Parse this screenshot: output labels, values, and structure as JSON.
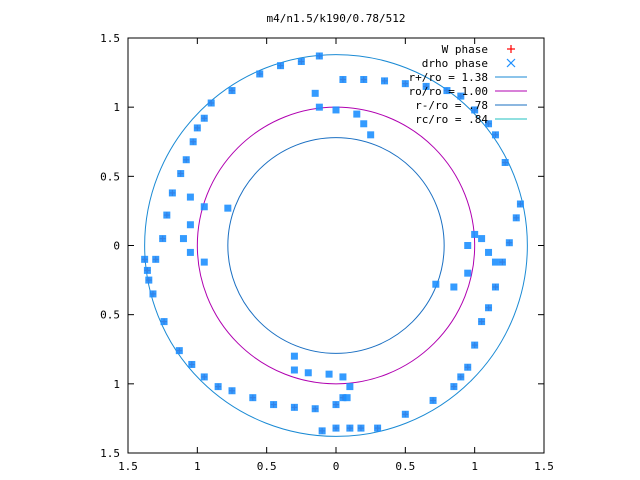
{
  "chart_data": {
    "type": "scatter",
    "title": "m4/n1.5/k190/0.78/512",
    "xlabel": "",
    "ylabel": "",
    "xlim": [
      -1.5,
      1.5
    ],
    "ylim": [
      -1.5,
      1.5
    ],
    "x_ticks": [
      -1.5,
      -1,
      -0.5,
      0,
      0.5,
      1,
      1.5
    ],
    "y_ticks": [
      -1.5,
      -1,
      -0.5,
      0,
      0.5,
      1,
      1.5
    ],
    "x_tick_labels": [
      "1.5",
      "1",
      "0.5",
      "0",
      "0.5",
      "1",
      "1.5"
    ],
    "y_tick_labels": [
      "1.5",
      "1",
      "0.5",
      "0",
      "0.5",
      "1",
      "1.5"
    ],
    "grid": false,
    "legend_position": "top-right",
    "legend_alignment": "right-aligned text",
    "series": [
      {
        "name": "W phase",
        "marker": "plus",
        "color": "#ff0000",
        "points": [
          [
            -0.12,
            1.37
          ],
          [
            -0.25,
            1.33
          ],
          [
            -0.4,
            1.3
          ],
          [
            -0.55,
            1.24
          ],
          [
            -0.75,
            1.12
          ],
          [
            -0.9,
            1.03
          ],
          [
            -0.95,
            0.92
          ],
          [
            -1.0,
            0.85
          ],
          [
            -1.03,
            0.75
          ],
          [
            -1.08,
            0.62
          ],
          [
            -1.12,
            0.52
          ],
          [
            -1.18,
            0.38
          ],
          [
            -1.22,
            0.22
          ],
          [
            -1.25,
            0.05
          ],
          [
            -1.3,
            -0.1
          ],
          [
            -1.38,
            -0.1
          ],
          [
            -1.36,
            -0.18
          ],
          [
            -1.35,
            -0.25
          ],
          [
            -1.32,
            -0.35
          ],
          [
            -1.24,
            -0.55
          ],
          [
            -1.13,
            -0.76
          ],
          [
            -1.04,
            -0.86
          ],
          [
            -0.95,
            -0.95
          ],
          [
            -0.85,
            -1.02
          ],
          [
            -0.75,
            -1.05
          ],
          [
            -0.6,
            -1.1
          ],
          [
            -0.45,
            -1.15
          ],
          [
            -0.3,
            -1.17
          ],
          [
            -0.15,
            -1.18
          ],
          [
            0.0,
            -1.15
          ],
          [
            0.05,
            -1.1
          ],
          [
            -0.1,
            -1.34
          ],
          [
            0.0,
            -1.32
          ],
          [
            0.1,
            -1.32
          ],
          [
            0.18,
            -1.32
          ],
          [
            0.3,
            -1.32
          ],
          [
            0.5,
            -1.22
          ],
          [
            0.7,
            -1.12
          ],
          [
            0.85,
            -1.02
          ],
          [
            0.9,
            -0.95
          ],
          [
            0.95,
            -0.88
          ],
          [
            1.0,
            -0.72
          ],
          [
            1.05,
            -0.55
          ],
          [
            1.1,
            -0.45
          ],
          [
            1.15,
            -0.3
          ],
          [
            1.2,
            -0.12
          ],
          [
            1.25,
            0.02
          ],
          [
            1.3,
            0.2
          ],
          [
            1.33,
            0.3
          ],
          [
            1.22,
            0.6
          ],
          [
            1.15,
            0.8
          ],
          [
            1.1,
            0.88
          ],
          [
            1.0,
            0.98
          ],
          [
            0.9,
            1.08
          ],
          [
            0.8,
            1.12
          ],
          [
            0.65,
            1.15
          ],
          [
            0.5,
            1.17
          ],
          [
            0.35,
            1.19
          ],
          [
            0.2,
            1.2
          ],
          [
            0.05,
            1.2
          ]
        ]
      },
      {
        "name": "drho phase",
        "marker": "cross",
        "color": "#1e90ff",
        "points": [
          [
            -0.12,
            1.37
          ],
          [
            -0.25,
            1.33
          ],
          [
            -0.4,
            1.3
          ],
          [
            -0.55,
            1.24
          ],
          [
            -0.75,
            1.12
          ],
          [
            -0.9,
            1.03
          ],
          [
            -0.95,
            0.92
          ],
          [
            -1.0,
            0.85
          ],
          [
            -1.03,
            0.75
          ],
          [
            -1.08,
            0.62
          ],
          [
            -1.12,
            0.52
          ],
          [
            -1.18,
            0.38
          ],
          [
            -1.22,
            0.22
          ],
          [
            -1.25,
            0.05
          ],
          [
            -1.3,
            -0.1
          ],
          [
            -1.38,
            -0.1
          ],
          [
            -1.36,
            -0.18
          ],
          [
            -1.35,
            -0.25
          ],
          [
            -1.32,
            -0.35
          ],
          [
            -1.24,
            -0.55
          ],
          [
            -1.13,
            -0.76
          ],
          [
            -1.04,
            -0.86
          ],
          [
            -0.95,
            -0.95
          ],
          [
            -0.85,
            -1.02
          ],
          [
            -0.75,
            -1.05
          ],
          [
            -0.6,
            -1.1
          ],
          [
            -0.45,
            -1.15
          ],
          [
            -0.3,
            -1.17
          ],
          [
            -0.15,
            -1.18
          ],
          [
            0.0,
            -1.15
          ],
          [
            0.05,
            -1.1
          ],
          [
            -0.1,
            -1.34
          ],
          [
            0.0,
            -1.32
          ],
          [
            0.1,
            -1.32
          ],
          [
            0.18,
            -1.32
          ],
          [
            0.3,
            -1.32
          ],
          [
            0.5,
            -1.22
          ],
          [
            0.7,
            -1.12
          ],
          [
            0.85,
            -1.02
          ],
          [
            0.9,
            -0.95
          ],
          [
            0.95,
            -0.88
          ],
          [
            1.0,
            -0.72
          ],
          [
            1.05,
            -0.55
          ],
          [
            1.1,
            -0.45
          ],
          [
            1.15,
            -0.3
          ],
          [
            1.2,
            -0.12
          ],
          [
            1.25,
            0.02
          ],
          [
            1.3,
            0.2
          ],
          [
            1.33,
            0.3
          ],
          [
            1.22,
            0.6
          ],
          [
            1.15,
            0.8
          ],
          [
            1.1,
            0.88
          ],
          [
            1.0,
            0.98
          ],
          [
            0.9,
            1.08
          ],
          [
            0.8,
            1.12
          ],
          [
            0.65,
            1.15
          ],
          [
            0.5,
            1.17
          ],
          [
            0.35,
            1.19
          ],
          [
            0.2,
            1.2
          ],
          [
            0.05,
            1.2
          ],
          [
            -0.15,
            1.1
          ],
          [
            -0.12,
            1.0
          ],
          [
            0.0,
            0.98
          ],
          [
            0.15,
            0.95
          ],
          [
            0.2,
            0.88
          ],
          [
            0.25,
            0.8
          ],
          [
            -1.05,
            0.35
          ],
          [
            -0.95,
            0.28
          ],
          [
            -0.78,
            0.27
          ],
          [
            -1.05,
            0.15
          ],
          [
            -1.1,
            0.05
          ],
          [
            -1.05,
            -0.05
          ],
          [
            -0.95,
            -0.12
          ],
          [
            0.72,
            -0.28
          ],
          [
            0.85,
            -0.3
          ],
          [
            0.95,
            -0.2
          ],
          [
            0.95,
            0.0
          ],
          [
            1.0,
            0.08
          ],
          [
            1.05,
            0.05
          ],
          [
            1.1,
            -0.05
          ],
          [
            1.15,
            -0.12
          ],
          [
            -0.3,
            -0.8
          ],
          [
            -0.3,
            -0.9
          ],
          [
            -0.2,
            -0.92
          ],
          [
            -0.05,
            -0.93
          ],
          [
            0.05,
            -0.95
          ],
          [
            0.1,
            -1.02
          ],
          [
            0.08,
            -1.1
          ]
        ]
      }
    ],
    "circles": [
      {
        "name": "r+/ro = 1.38",
        "r": 1.38,
        "color": "#1a8ad4"
      },
      {
        "name": "ro/ro = 1.00",
        "r": 1.0,
        "color": "#b000b0"
      },
      {
        "name": "r-/ro = .78",
        "r": 0.78,
        "color": "#1a6fc2"
      },
      {
        "name": "rc/ro = .84",
        "r": 0.84,
        "color": "#20c0c0",
        "visible": false
      }
    ]
  }
}
